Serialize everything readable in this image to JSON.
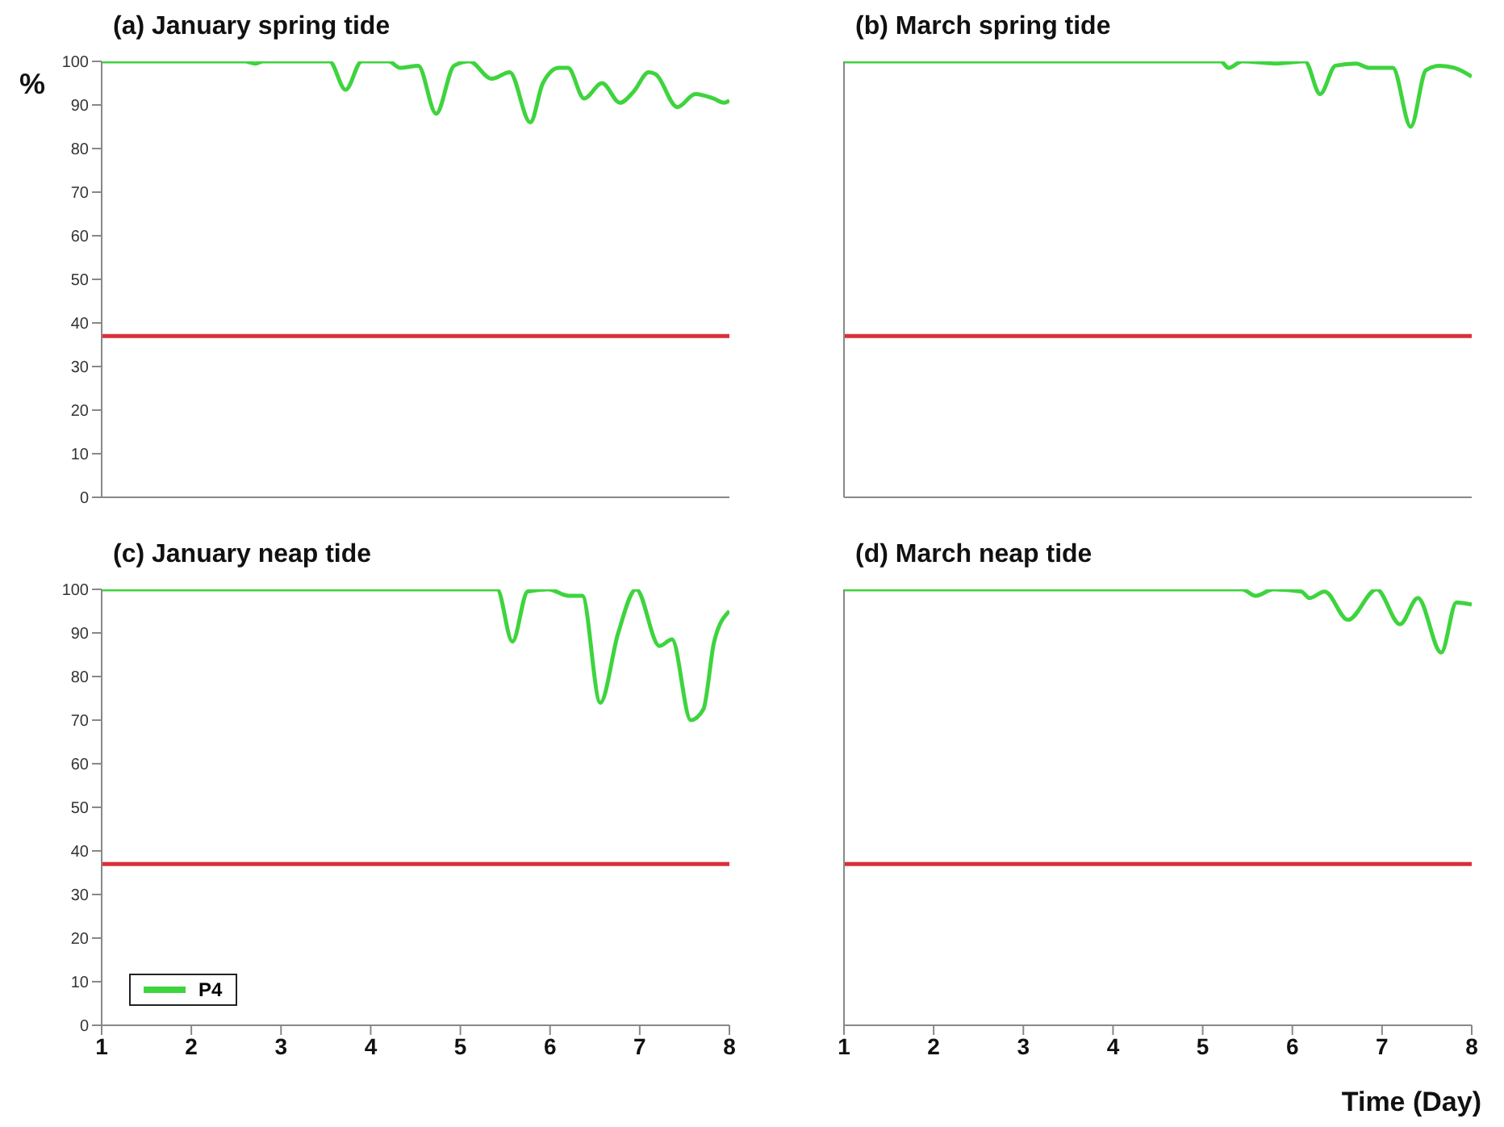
{
  "chart_data": [
    {
      "type": "line",
      "title": "(a) January spring tide",
      "ylabel": "%",
      "xlim": [
        1,
        8
      ],
      "xticks": [
        1,
        2,
        3,
        4,
        5,
        6,
        7,
        8
      ],
      "ylim": [
        0,
        100
      ],
      "yticks": [
        0,
        10,
        20,
        30,
        40,
        50,
        60,
        70,
        80,
        90,
        100
      ],
      "tick_labels": "y",
      "grid": false,
      "marker": "none",
      "line_style": "solid",
      "ref_lines": [
        {
          "axis": "y",
          "value": 37,
          "color": "#d9303a"
        }
      ],
      "series": [
        {
          "color": "#3ed43e",
          "x": [
            1,
            2.6,
            2.71,
            2.8,
            3.54,
            3.72,
            3.9,
            4.2,
            4.33,
            4.53,
            4.73,
            4.93,
            5.1,
            5.35,
            5.55,
            5.78,
            5.92,
            6.1,
            6.2,
            6.38,
            6.58,
            6.78,
            6.93,
            7.1,
            7.18,
            7.42,
            7.62,
            7.82,
            7.94,
            8
          ],
          "values": [
            100,
            100,
            99.5,
            100,
            100,
            93.5,
            100,
            100,
            98.5,
            99,
            88,
            99,
            100,
            96,
            97.5,
            86,
            95,
            98.5,
            98.5,
            91.5,
            95,
            90.5,
            93,
            97.5,
            97,
            89.5,
            92.5,
            91.5,
            90.5,
            91
          ]
        }
      ]
    },
    {
      "type": "line",
      "title": "(b) March spring tide",
      "xlim": [
        1,
        8
      ],
      "xticks": [
        1,
        2,
        3,
        4,
        5,
        6,
        7,
        8
      ],
      "ylim": [
        0,
        100
      ],
      "yticks": [
        0,
        10,
        20,
        30,
        40,
        50,
        60,
        70,
        80,
        90,
        100
      ],
      "tick_labels": false,
      "grid": false,
      "marker": "none",
      "line_style": "solid",
      "ref_lines": [
        {
          "axis": "y",
          "value": 37,
          "color": "#d9303a"
        }
      ],
      "series": [
        {
          "color": "#3ed43e",
          "x": [
            1,
            5.2,
            5.29,
            5.44,
            5.82,
            6.14,
            6.31,
            6.48,
            6.71,
            6.86,
            7.12,
            7.32,
            7.49,
            7.64,
            7.81,
            8
          ],
          "values": [
            100,
            100,
            98.5,
            100,
            99.5,
            100,
            92.5,
            99,
            99.5,
            98.5,
            98.5,
            85,
            98,
            99,
            98.5,
            96.5
          ]
        }
      ]
    },
    {
      "type": "line",
      "title": "(c) January neap tide",
      "xlim": [
        1,
        8
      ],
      "xticks": [
        1,
        2,
        3,
        4,
        5,
        6,
        7,
        8
      ],
      "ylim": [
        0,
        100
      ],
      "yticks": [
        0,
        10,
        20,
        30,
        40,
        50,
        60,
        70,
        80,
        90,
        100
      ],
      "grid": false,
      "marker": "none",
      "line_style": "solid",
      "legend": "bottom left",
      "ref_lines": [
        {
          "axis": "y",
          "value": 37,
          "color": "#d9303a"
        }
      ],
      "series": [
        {
          "name": "P4",
          "color": "#3ed43e",
          "x": [
            1,
            5.41,
            5.58,
            5.75,
            5.98,
            6.21,
            6.36,
            6.56,
            6.76,
            6.96,
            7.22,
            7.36,
            7.57,
            7.71,
            7.83,
            8
          ],
          "values": [
            100,
            100,
            88,
            99.5,
            100,
            98.5,
            98.5,
            74,
            90,
            100,
            87,
            88.5,
            70,
            72.5,
            88,
            95
          ]
        }
      ]
    },
    {
      "type": "line",
      "title": "(d) March neap tide",
      "xlabel": "Time (Day)",
      "xlim": [
        1,
        8
      ],
      "xticks": [
        1,
        2,
        3,
        4,
        5,
        6,
        7,
        8
      ],
      "ylim": [
        0,
        100
      ],
      "yticks": [
        0,
        10,
        20,
        30,
        40,
        50,
        60,
        70,
        80,
        90,
        100
      ],
      "tick_labels": "x",
      "grid": false,
      "marker": "none",
      "line_style": "solid",
      "ref_lines": [
        {
          "axis": "y",
          "value": 37,
          "color": "#d9303a"
        }
      ],
      "series": [
        {
          "color": "#3ed43e",
          "x": [
            1,
            5.44,
            5.59,
            5.79,
            6.1,
            6.19,
            6.36,
            6.62,
            6.94,
            7.2,
            7.4,
            7.66,
            7.83,
            8
          ],
          "values": [
            100,
            100,
            98.5,
            100,
            99.5,
            98,
            99.5,
            93,
            100,
            92,
            98,
            85.5,
            97,
            96.5
          ]
        }
      ]
    }
  ]
}
